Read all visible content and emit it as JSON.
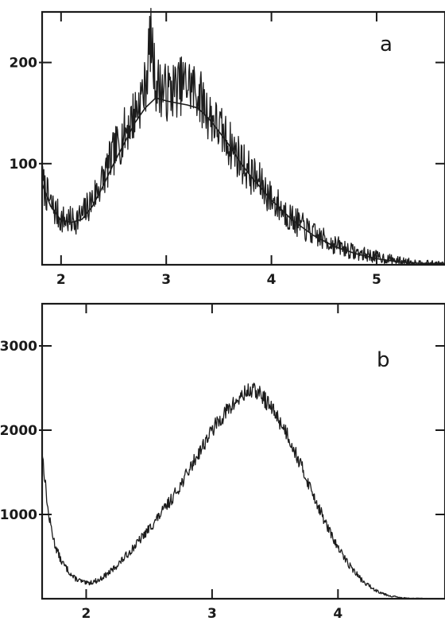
{
  "chart_data": [
    {
      "panel": "a",
      "type": "line",
      "title": "",
      "xlabel": "",
      "ylabel": "",
      "xlim": [
        1.82,
        5.65
      ],
      "ylim": [
        0,
        250
      ],
      "xticks": [
        2,
        3,
        4,
        5
      ],
      "xtick_labels": [
        "2",
        "3",
        "4",
        "5"
      ],
      "yticks": [
        100,
        200
      ],
      "ytick_labels": [
        "100",
        "200"
      ],
      "grid": false,
      "series": [
        {
          "style": "noisy",
          "x": [
            1.82,
            1.9,
            2.0,
            2.1,
            2.2,
            2.3,
            2.4,
            2.5,
            2.6,
            2.7,
            2.8,
            2.85,
            2.9,
            3.0,
            3.1,
            3.2,
            3.3,
            3.4,
            3.5,
            3.6,
            3.7,
            3.8,
            3.9,
            4.0,
            4.2,
            4.4,
            4.6,
            4.8,
            5.0,
            5.2,
            5.4,
            5.65
          ],
          "y": [
            82,
            60,
            45,
            43,
            48,
            65,
            85,
            110,
            130,
            150,
            175,
            225,
            180,
            170,
            175,
            180,
            170,
            150,
            135,
            120,
            105,
            90,
            80,
            65,
            45,
            30,
            20,
            12,
            8,
            4,
            2,
            1
          ]
        },
        {
          "style": "smooth",
          "x": [
            1.82,
            1.9,
            2.0,
            2.1,
            2.2,
            2.3,
            2.4,
            2.5,
            2.6,
            2.7,
            2.8,
            2.9,
            3.0,
            3.1,
            3.2,
            3.3,
            3.4,
            3.5,
            3.6,
            3.7,
            3.8,
            3.9,
            4.0,
            4.2,
            4.4,
            4.6,
            4.8,
            5.0,
            5.2,
            5.4,
            5.65
          ],
          "y": [
            80,
            58,
            44,
            42,
            45,
            58,
            78,
            100,
            120,
            140,
            155,
            165,
            162,
            160,
            158,
            155,
            145,
            132,
            118,
            102,
            88,
            76,
            64,
            44,
            29,
            18,
            11,
            6,
            3,
            1.5,
            1
          ]
        }
      ],
      "annotations": [
        "a"
      ]
    },
    {
      "panel": "b",
      "type": "line",
      "title": "",
      "xlabel": "",
      "ylabel": "",
      "xlim": [
        1.65,
        4.85
      ],
      "ylim": [
        0,
        3500
      ],
      "xticks": [
        2,
        3,
        4
      ],
      "xtick_labels": [
        "2",
        "3",
        "4"
      ],
      "yticks": [
        1000,
        2000,
        3000
      ],
      "ytick_labels": [
        "1000",
        "2000",
        "3000"
      ],
      "grid": false,
      "series": [
        {
          "style": "noisy",
          "x": [
            1.65,
            1.7,
            1.75,
            1.8,
            1.9,
            2.0,
            2.1,
            2.2,
            2.3,
            2.4,
            2.5,
            2.6,
            2.7,
            2.8,
            2.9,
            3.0,
            3.1,
            3.2,
            3.25,
            3.3,
            3.35,
            3.4,
            3.5,
            3.6,
            3.7,
            3.8,
            3.9,
            4.0,
            4.1,
            4.2,
            4.3,
            4.4,
            4.5,
            4.6,
            4.7,
            4.85
          ],
          "y": [
            1750,
            1000,
            650,
            450,
            250,
            180,
            220,
            330,
            480,
            650,
            830,
            1020,
            1230,
            1480,
            1750,
            2000,
            2200,
            2350,
            2420,
            2470,
            2460,
            2400,
            2200,
            1950,
            1600,
            1250,
            900,
            600,
            380,
            200,
            100,
            40,
            10,
            5,
            2,
            0
          ]
        }
      ],
      "annotations": [
        "b"
      ]
    }
  ]
}
